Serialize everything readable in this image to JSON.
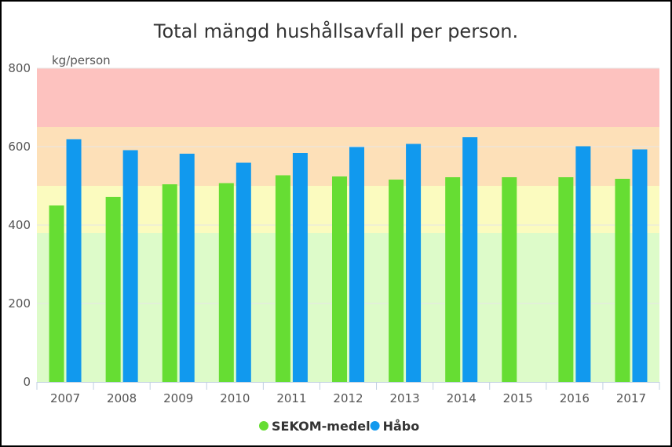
{
  "chart_data": {
    "type": "bar",
    "title": "Total mängd hushållsavfall per person.",
    "unit_label": "kg/person",
    "categories": [
      "2007",
      "2008",
      "2009",
      "2010",
      "2011",
      "2012",
      "2013",
      "2014",
      "2015",
      "2016",
      "2017"
    ],
    "series": [
      {
        "name": "SEKOM-medel",
        "color": "#66dd33",
        "values": [
          450,
          472,
          504,
          507,
          527,
          524,
          516,
          522,
          522,
          522,
          518
        ]
      },
      {
        "name": "Håbo",
        "color": "#1199ee",
        "values": [
          619,
          591,
          582,
          559,
          584,
          599,
          607,
          624,
          null,
          601,
          593
        ]
      }
    ],
    "ylim": [
      0,
      800
    ],
    "yticks": [
      0,
      200,
      400,
      600,
      800
    ],
    "bands": [
      {
        "from": 0,
        "to": 380,
        "color": "#ddfbc9"
      },
      {
        "from": 380,
        "to": 500,
        "color": "#fbfbbf"
      },
      {
        "from": 500,
        "to": 650,
        "color": "#fde0b8"
      },
      {
        "from": 650,
        "to": 800,
        "color": "#fdc2bf"
      }
    ],
    "legend_position": "bottom-center"
  }
}
